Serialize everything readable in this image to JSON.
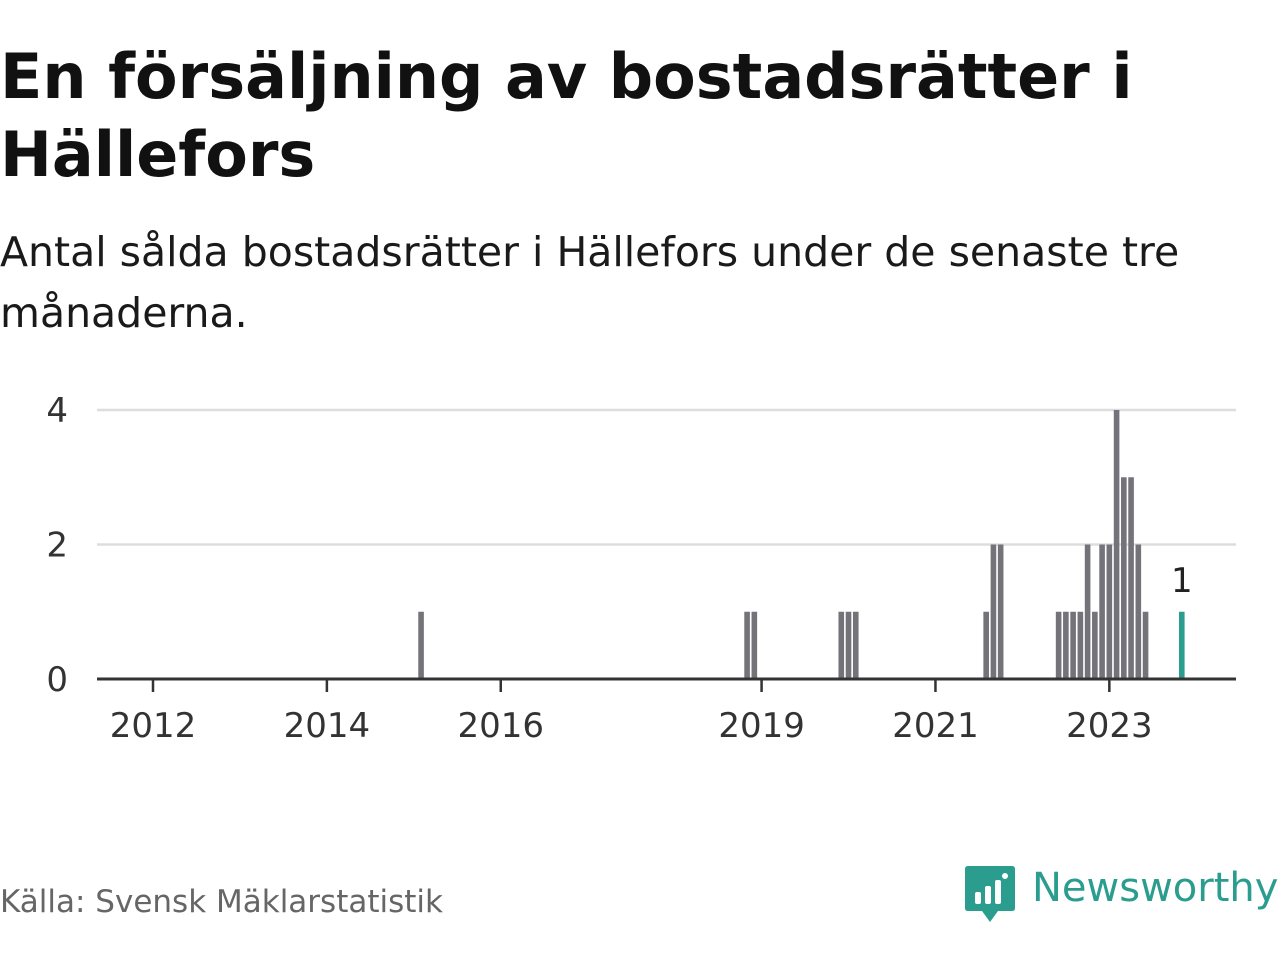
{
  "header": {
    "title": "En försäljning av bostadsrätter i Hällefors",
    "subtitle": "Antal sålda bostadsrätter i Hällefors under de senaste tre månaderna."
  },
  "footer": {
    "source": "Källa: Svensk Mäklarstatistik",
    "brand": "Newsworthy",
    "brand_icon": "bar-chart-speech-bubble-icon"
  },
  "colors": {
    "bar": "#74737a",
    "highlight": "#2a9d8f",
    "grid": "#dddddd",
    "axis": "#333333",
    "brand": "#2a9d8f"
  },
  "chart_data": {
    "type": "bar",
    "x_type": "month",
    "y_ticks": [
      0,
      2,
      4
    ],
    "ylim": [
      0,
      4
    ],
    "x_ticks": [
      "2012",
      "2014",
      "2016",
      "2019",
      "2021",
      "2023"
    ],
    "grid": true,
    "series": [
      {
        "values": [
          {
            "x": "2015-02",
            "y": 1
          },
          {
            "x": "2018-11",
            "y": 1
          },
          {
            "x": "2018-12",
            "y": 1
          },
          {
            "x": "2019-12",
            "y": 1
          },
          {
            "x": "2020-01",
            "y": 1
          },
          {
            "x": "2020-02",
            "y": 1
          },
          {
            "x": "2021-08",
            "y": 1
          },
          {
            "x": "2021-09",
            "y": 2
          },
          {
            "x": "2021-10",
            "y": 2
          },
          {
            "x": "2022-06",
            "y": 1
          },
          {
            "x": "2022-07",
            "y": 1
          },
          {
            "x": "2022-08",
            "y": 1
          },
          {
            "x": "2022-09",
            "y": 1
          },
          {
            "x": "2022-10",
            "y": 2
          },
          {
            "x": "2022-11",
            "y": 1
          },
          {
            "x": "2022-12",
            "y": 2
          },
          {
            "x": "2023-01",
            "y": 2
          },
          {
            "x": "2023-02",
            "y": 4
          },
          {
            "x": "2023-03",
            "y": 3
          },
          {
            "x": "2023-04",
            "y": 3
          },
          {
            "x": "2023-05",
            "y": 2
          },
          {
            "x": "2023-06",
            "y": 1
          }
        ]
      }
    ],
    "highlight": {
      "x": "2023-11",
      "y": 1,
      "label": "1"
    }
  }
}
